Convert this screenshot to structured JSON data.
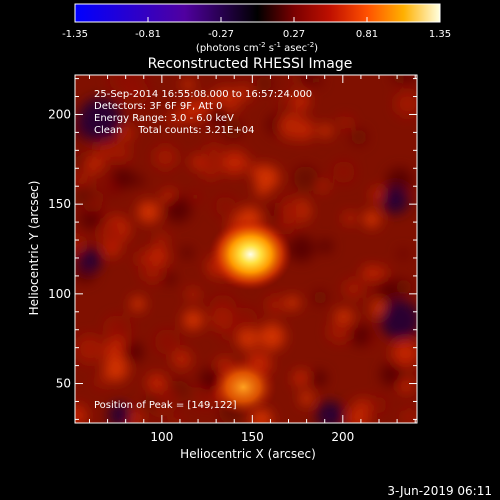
{
  "chart_data": {
    "type": "heatmap",
    "title": "Reconstructed RHESSI Image",
    "xlabel": "Heliocentric X (arcsec)",
    "ylabel": "Heliocentric Y (arcsec)",
    "xlim": [
      52,
      241
    ],
    "ylim": [
      28,
      222
    ],
    "x_ticks": [
      100,
      150,
      200
    ],
    "y_ticks": [
      50,
      100,
      150,
      200
    ],
    "colorbar": {
      "range": [
        -1.35,
        1.35
      ],
      "tick_labels": [
        "-1.35",
        "-0.81",
        "-0.27",
        "0.27",
        "0.81",
        "1.35"
      ],
      "label_parts": [
        "(photons cm",
        "-2",
        " s",
        "-1",
        " asec",
        "-2",
        ")"
      ]
    },
    "annotations": [
      "25-Sep-2014 16:55:08.000 to 16:57:24.000",
      "Detectors: 3F 6F 9F, Att 0",
      "Energy Range: 3.0 - 6.0 keV",
      "Clean     Total counts: 3.21E+04",
      "Position of Peak = [149,122]"
    ],
    "sources": [
      {
        "x": 149,
        "y": 122,
        "peak": 1.35,
        "sigma": 5
      },
      {
        "x": 145,
        "y": 48,
        "peak": 0.7,
        "sigma": 4
      }
    ],
    "background_level": 0.15,
    "footer_date": "3-Jun-2019 06:11"
  }
}
